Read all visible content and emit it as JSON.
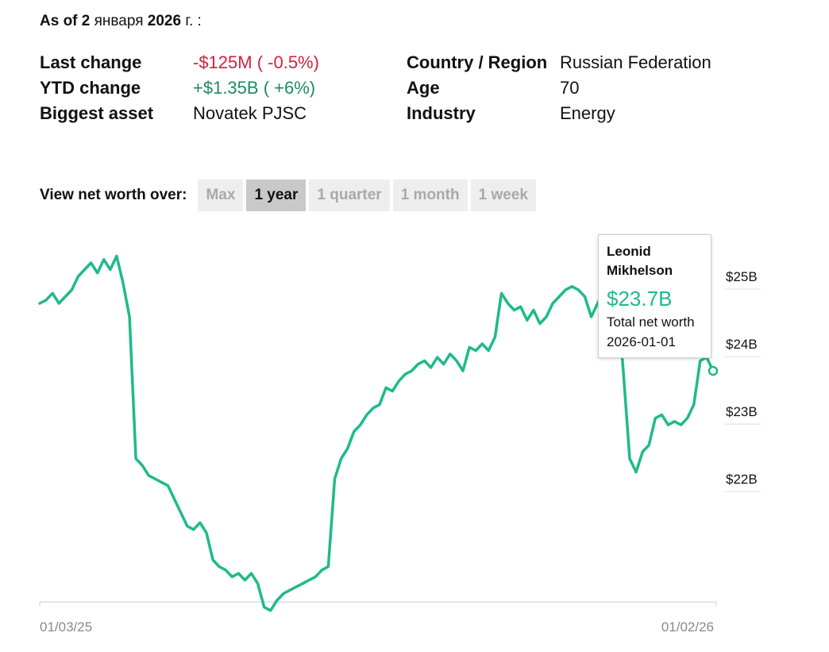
{
  "header": {
    "as_of_prefix": "As of 2",
    "as_of_month": "января",
    "as_of_year": "2026",
    "as_of_suffix": "г. :"
  },
  "stats": {
    "last_change_label": "Last change",
    "last_change_value": "-$125M ( -0.5%)",
    "ytd_change_label": "YTD change",
    "ytd_change_value": "+$1.35B ( +6%)",
    "biggest_asset_label": "Biggest asset",
    "biggest_asset_value": "Novatek PJSC",
    "country_label": "Country / Region",
    "country_value": "Russian Federation",
    "age_label": "Age",
    "age_value": "70",
    "industry_label": "Industry",
    "industry_value": "Energy"
  },
  "range_selector": {
    "label": "View net worth over:",
    "options": [
      "Max",
      "1 year",
      "1 quarter",
      "1 month",
      "1 week"
    ],
    "selected": "1 year"
  },
  "tooltip": {
    "name": "Leonid Mikhelson",
    "value": "$23.7B",
    "subtitle": "Total net worth",
    "date": "2026-01-01"
  },
  "colors": {
    "line": "#1fba8a",
    "negative": "#d1213f",
    "positive": "#1e8a62"
  },
  "chart_data": {
    "type": "line",
    "xlabels": [
      "01/03/25",
      "01/02/26"
    ],
    "x_start": "2025-01-03",
    "x_end": "2026-01-02",
    "yticks": [
      25,
      24,
      23,
      22
    ],
    "ytick_labels": [
      "$25B",
      "$24B",
      "$23B",
      "$22B"
    ],
    "ylim": [
      20.0,
      25.6
    ],
    "grid": false,
    "series": [
      {
        "name": "Leonid Mikhelson",
        "values": [
          24.6,
          24.65,
          24.75,
          24.6,
          24.7,
          24.8,
          25.0,
          25.1,
          25.2,
          25.05,
          25.25,
          25.1,
          25.3,
          24.9,
          24.4,
          22.3,
          22.2,
          22.05,
          22.0,
          21.95,
          21.9,
          21.7,
          21.5,
          21.3,
          21.25,
          21.35,
          21.2,
          20.8,
          20.7,
          20.65,
          20.55,
          20.6,
          20.5,
          20.6,
          20.45,
          20.1,
          20.05,
          20.2,
          20.3,
          20.35,
          20.4,
          20.45,
          20.5,
          20.55,
          20.65,
          20.7,
          22.0,
          22.3,
          22.45,
          22.7,
          22.8,
          22.95,
          23.05,
          23.1,
          23.35,
          23.3,
          23.45,
          23.55,
          23.6,
          23.7,
          23.75,
          23.65,
          23.8,
          23.7,
          23.85,
          23.75,
          23.6,
          23.95,
          23.9,
          24.0,
          23.9,
          24.1,
          24.75,
          24.6,
          24.5,
          24.55,
          24.35,
          24.5,
          24.3,
          24.4,
          24.6,
          24.7,
          24.8,
          24.85,
          24.8,
          24.7,
          24.4,
          24.6,
          24.8,
          24.9,
          24.85,
          23.6,
          22.3,
          22.1,
          22.4,
          22.5,
          22.9,
          22.95,
          22.8,
          22.85,
          22.8,
          22.9,
          23.1,
          23.75,
          23.8,
          23.6
        ]
      }
    ]
  }
}
